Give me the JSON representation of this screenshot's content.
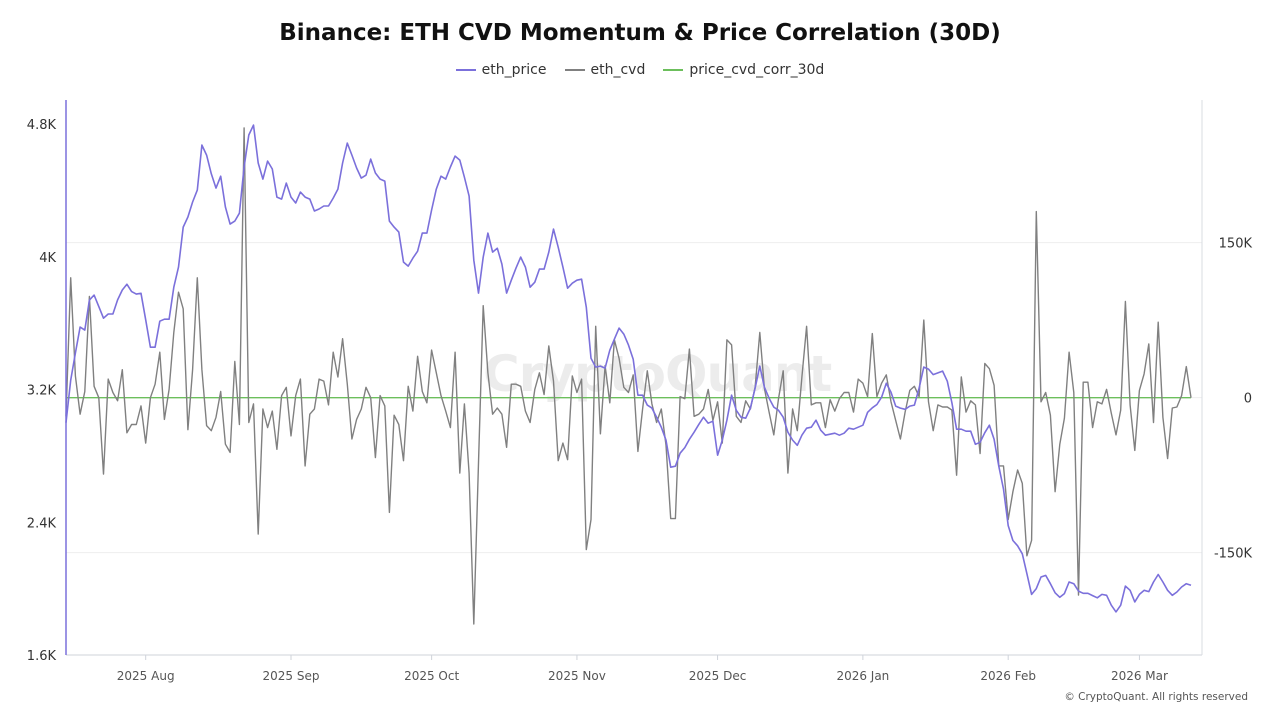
{
  "chart_data": {
    "type": "line",
    "title": "Binance: ETH CVD Momentum & Price Correlation (30D)",
    "legend_position": "top",
    "grid": true,
    "x_tick_labels": [
      {
        "date": "2025-08-01",
        "label": "2025 Aug"
      },
      {
        "date": "2025-09-01",
        "label": "2025 Sep"
      },
      {
        "date": "2025-10-01",
        "label": "2025 Oct"
      },
      {
        "date": "2025-11-01",
        "label": "2025 Nov"
      },
      {
        "date": "2025-12-01",
        "label": "2025 Dec"
      },
      {
        "date": "2026-01-01",
        "label": "2026 Jan"
      },
      {
        "date": "2026-02-01",
        "label": "2026 Feb"
      },
      {
        "date": "2026-03-01",
        "label": "2026 Mar"
      }
    ],
    "y_left": {
      "ticks": [
        1600,
        2400,
        3200,
        4000,
        4800
      ],
      "tick_labels": [
        "1.6K",
        "2.4K",
        "3.2K",
        "4K",
        "4.8K"
      ],
      "ylim": [
        1600,
        4945
      ],
      "series": "eth_price"
    },
    "y_right": {
      "ticks": [
        -150000,
        0,
        150000
      ],
      "tick_labels": [
        "-150K",
        "0",
        "150K"
      ],
      "ylim": [
        -249000,
        288000
      ],
      "series": [
        "eth_cvd",
        "price_cvd_corr_30d"
      ]
    },
    "x": [
      "2025-07-15",
      "2025-07-16",
      "2025-07-17",
      "2025-07-18",
      "2025-07-19",
      "2025-07-20",
      "2025-07-21",
      "2025-07-22",
      "2025-07-23",
      "2025-07-24",
      "2025-07-25",
      "2025-07-26",
      "2025-07-27",
      "2025-07-28",
      "2025-07-29",
      "2025-07-30",
      "2025-07-31",
      "2025-08-01",
      "2025-08-02",
      "2025-08-03",
      "2025-08-04",
      "2025-08-05",
      "2025-08-06",
      "2025-08-07",
      "2025-08-08",
      "2025-08-09",
      "2025-08-10",
      "2025-08-11",
      "2025-08-12",
      "2025-08-13",
      "2025-08-14",
      "2025-08-15",
      "2025-08-16",
      "2025-08-17",
      "2025-08-18",
      "2025-08-19",
      "2025-08-20",
      "2025-08-21",
      "2025-08-22",
      "2025-08-23",
      "2025-08-24",
      "2025-08-25",
      "2025-08-26",
      "2025-08-27",
      "2025-08-28",
      "2025-08-29",
      "2025-08-30",
      "2025-08-31",
      "2025-09-01",
      "2025-09-02",
      "2025-09-03",
      "2025-09-04",
      "2025-09-05",
      "2025-09-06",
      "2025-09-07",
      "2025-09-08",
      "2025-09-09",
      "2025-09-10",
      "2025-09-11",
      "2025-09-12",
      "2025-09-13",
      "2025-09-14",
      "2025-09-15",
      "2025-09-16",
      "2025-09-17",
      "2025-09-18",
      "2025-09-19",
      "2025-09-20",
      "2025-09-21",
      "2025-09-22",
      "2025-09-23",
      "2025-09-24",
      "2025-09-25",
      "2025-09-26",
      "2025-09-27",
      "2025-09-28",
      "2025-09-29",
      "2025-09-30",
      "2025-10-01",
      "2025-10-02",
      "2025-10-03",
      "2025-10-04",
      "2025-10-05",
      "2025-10-06",
      "2025-10-07",
      "2025-10-08",
      "2025-10-09",
      "2025-10-10",
      "2025-10-11",
      "2025-10-12",
      "2025-10-13",
      "2025-10-14",
      "2025-10-15",
      "2025-10-16",
      "2025-10-17",
      "2025-10-18",
      "2025-10-19",
      "2025-10-20",
      "2025-10-21",
      "2025-10-22",
      "2025-10-23",
      "2025-10-24",
      "2025-10-25",
      "2025-10-26",
      "2025-10-27",
      "2025-10-28",
      "2025-10-29",
      "2025-10-30",
      "2025-10-31",
      "2025-11-01",
      "2025-11-02",
      "2025-11-03",
      "2025-11-04",
      "2025-11-05",
      "2025-11-06",
      "2025-11-07",
      "2025-11-08",
      "2025-11-09",
      "2025-11-10",
      "2025-11-11",
      "2025-11-12",
      "2025-11-13",
      "2025-11-14",
      "2025-11-15",
      "2025-11-16",
      "2025-11-17",
      "2025-11-18",
      "2025-11-19",
      "2025-11-20",
      "2025-11-21",
      "2025-11-22",
      "2025-11-23",
      "2025-11-24",
      "2025-11-25",
      "2025-11-26",
      "2025-11-27",
      "2025-11-28",
      "2025-11-29",
      "2025-11-30",
      "2025-12-01",
      "2025-12-02",
      "2025-12-03",
      "2025-12-04",
      "2025-12-05",
      "2025-12-06",
      "2025-12-07",
      "2025-12-08",
      "2025-12-09",
      "2025-12-10",
      "2025-12-11",
      "2025-12-12",
      "2025-12-13",
      "2025-12-14",
      "2025-12-15",
      "2025-12-16",
      "2025-12-17",
      "2025-12-18",
      "2025-12-19",
      "2025-12-20",
      "2025-12-21",
      "2025-12-22",
      "2025-12-23",
      "2025-12-24",
      "2025-12-25",
      "2025-12-26",
      "2025-12-27",
      "2025-12-28",
      "2025-12-29",
      "2025-12-30",
      "2025-12-31",
      "2026-01-01",
      "2026-01-02",
      "2026-01-03",
      "2026-01-04",
      "2026-01-05",
      "2026-01-06",
      "2026-01-07",
      "2026-01-08",
      "2026-01-09",
      "2026-01-10",
      "2026-01-11",
      "2026-01-12",
      "2026-01-13",
      "2026-01-14",
      "2026-01-15",
      "2026-01-16",
      "2026-01-17",
      "2026-01-18",
      "2026-01-19",
      "2026-01-20",
      "2026-01-21",
      "2026-01-22",
      "2026-01-23",
      "2026-01-24",
      "2026-01-25",
      "2026-01-26",
      "2026-01-27",
      "2026-01-28",
      "2026-01-29",
      "2026-01-30",
      "2026-01-31",
      "2026-02-01",
      "2026-02-02",
      "2026-02-03",
      "2026-02-04",
      "2026-02-05",
      "2026-02-06",
      "2026-02-07",
      "2026-02-08",
      "2026-02-09",
      "2026-02-10",
      "2026-02-11",
      "2026-02-12",
      "2026-02-13",
      "2026-02-14",
      "2026-02-15",
      "2026-02-16",
      "2026-02-17",
      "2026-02-18",
      "2026-02-19",
      "2026-02-20",
      "2026-02-21",
      "2026-02-22",
      "2026-02-23",
      "2026-02-24",
      "2026-02-25",
      "2026-02-26",
      "2026-02-27",
      "2026-02-28",
      "2026-03-01",
      "2026-03-02",
      "2026-03-03",
      "2026-03-04",
      "2026-03-05",
      "2026-03-06",
      "2026-03-07",
      "2026-03-08",
      "2026-03-09",
      "2026-03-10",
      "2026-03-11",
      "2026-03-12"
    ],
    "series": [
      {
        "name": "eth_price",
        "axis": "left",
        "color": "#7b70db",
        "values": [
          3000,
          3256,
          3420,
          3576,
          3558,
          3739,
          3769,
          3700,
          3630,
          3655,
          3655,
          3740,
          3800,
          3835,
          3790,
          3775,
          3780,
          3620,
          3455,
          3455,
          3612,
          3624,
          3624,
          3817,
          3938,
          4179,
          4240,
          4330,
          4402,
          4673,
          4613,
          4500,
          4414,
          4486,
          4300,
          4197,
          4215,
          4263,
          4541,
          4734,
          4794,
          4565,
          4468,
          4577,
          4529,
          4360,
          4348,
          4444,
          4360,
          4324,
          4390,
          4360,
          4348,
          4276,
          4288,
          4306,
          4306,
          4354,
          4408,
          4565,
          4685,
          4613,
          4535,
          4474,
          4492,
          4589,
          4505,
          4468,
          4456,
          4215,
          4179,
          4149,
          3968,
          3944,
          3992,
          4034,
          4143,
          4143,
          4282,
          4408,
          4486,
          4468,
          4541,
          4607,
          4583,
          4480,
          4366,
          3980,
          3781,
          3998,
          4143,
          4028,
          4052,
          3956,
          3781,
          3859,
          3932,
          3998,
          3938,
          3817,
          3847,
          3926,
          3926,
          4028,
          4167,
          4058,
          3938,
          3811,
          3841,
          3859,
          3865,
          3696,
          3389,
          3335,
          3341,
          3329,
          3437,
          3504,
          3570,
          3534,
          3468,
          3383,
          3166,
          3166,
          3106,
          3088,
          3033,
          2973,
          2895,
          2732,
          2738,
          2816,
          2850,
          2900,
          2943,
          2990,
          3033,
          2997,
          3009,
          2804,
          2895,
          3015,
          3166,
          3075,
          3033,
          3027,
          3088,
          3208,
          3341,
          3214,
          3148,
          3094,
          3075,
          3033,
          2943,
          2895,
          2864,
          2925,
          2967,
          2973,
          3015,
          2955,
          2925,
          2931,
          2937,
          2925,
          2937,
          2967,
          2961,
          2973,
          2985,
          3063,
          3090,
          3110,
          3154,
          3238,
          3184,
          3100,
          3088,
          3081,
          3100,
          3106,
          3208,
          3335,
          3323,
          3290,
          3300,
          3311,
          3250,
          3120,
          2961,
          2961,
          2949,
          2949,
          2870,
          2882,
          2940,
          2985,
          2900,
          2738,
          2600,
          2380,
          2290,
          2258,
          2210,
          2090,
          1965,
          2000,
          2070,
          2080,
          2030,
          1975,
          1948,
          1970,
          2040,
          2030,
          1985,
          1972,
          1972,
          1958,
          1945,
          1965,
          1960,
          1900,
          1860,
          1900,
          2015,
          1990,
          1920,
          1965,
          1990,
          1982,
          2040,
          2085,
          2040,
          1990,
          1960,
          1980,
          2010,
          2030,
          2020
        ]
      },
      {
        "name": "eth_cvd",
        "axis": "right",
        "color": "#808080",
        "values": [
          -18000,
          116000,
          21000,
          -16000,
          6000,
          98000,
          11000,
          0,
          -74000,
          18000,
          5000,
          -3000,
          27000,
          -34000,
          -26000,
          -26000,
          -8000,
          -44000,
          0,
          13000,
          44000,
          -21000,
          8000,
          63000,
          102000,
          86000,
          -31000,
          27000,
          116000,
          27000,
          -27000,
          -32000,
          -19000,
          6000,
          -45000,
          -53000,
          35000,
          -26000,
          261000,
          -24000,
          -6000,
          -132000,
          -11000,
          -29000,
          -13000,
          -50000,
          2000,
          10000,
          -37000,
          2000,
          18000,
          -66000,
          -16000,
          -11000,
          18000,
          16000,
          -7000,
          44000,
          20000,
          57000,
          13000,
          -40000,
          -21000,
          -11000,
          10000,
          0,
          -58000,
          2000,
          -8000,
          -111000,
          -17000,
          -26000,
          -61000,
          11000,
          -13000,
          40000,
          6000,
          -5000,
          46000,
          24000,
          2000,
          -13000,
          -29000,
          44000,
          -73000,
          -6000,
          -73000,
          -219000,
          -63000,
          89000,
          24000,
          -16000,
          -10000,
          -16000,
          -48000,
          13000,
          13000,
          11000,
          -13000,
          -24000,
          8000,
          24000,
          3000,
          50000,
          16000,
          -61000,
          -44000,
          -60000,
          21000,
          5000,
          18000,
          -147000,
          -118000,
          69000,
          -35000,
          31000,
          -5000,
          56000,
          38000,
          10000,
          5000,
          22000,
          -52000,
          -11000,
          26000,
          -6000,
          -24000,
          -11000,
          -46000,
          -117000,
          -117000,
          1000,
          -1000,
          47000,
          -18000,
          -16000,
          -11000,
          8000,
          -22000,
          -4000,
          -44000,
          56000,
          51000,
          -18000,
          -24000,
          -3000,
          -11000,
          10000,
          63000,
          9000,
          -14000,
          -36000,
          -1000,
          26000,
          -73000,
          -11000,
          -32000,
          20000,
          69000,
          -7000,
          -5000,
          -5000,
          -29000,
          -2000,
          -13000,
          -1000,
          5000,
          5000,
          -14000,
          18000,
          14000,
          1000,
          62000,
          1000,
          14000,
          22000,
          -4000,
          -22000,
          -40000,
          -14000,
          7000,
          11000,
          1000,
          75000,
          -4000,
          -32000,
          -7000,
          -9000,
          -9000,
          -12000,
          -75000,
          20000,
          -14000,
          -3000,
          -7000,
          -54000,
          33000,
          28000,
          12000,
          -66000,
          -66000,
          -118000,
          -91000,
          -70000,
          -83000,
          -153000,
          -138000,
          180000,
          -4000,
          5000,
          -17000,
          -91000,
          -45000,
          -20000,
          44000,
          5000,
          -191000,
          15000,
          15000,
          -29000,
          -4000,
          -6000,
          8000,
          -15000,
          -36000,
          -12000,
          93000,
          -7000,
          -51000,
          7000,
          23000,
          52000,
          -24000,
          73000,
          -19000,
          -59000,
          -10000,
          -9000,
          2000,
          30000,
          0
        ]
      },
      {
        "name": "price_cvd_corr_30d",
        "axis": "right",
        "color": "#6cbf5c",
        "values": [
          0,
          0,
          0,
          0,
          0,
          0,
          0,
          0,
          0,
          0,
          0,
          0,
          0,
          0,
          0,
          0,
          0,
          0,
          0,
          0,
          0,
          0,
          0,
          0,
          0,
          0,
          0,
          0,
          0,
          0,
          0,
          0,
          0,
          0,
          0,
          0,
          0,
          0,
          0,
          0,
          0,
          0,
          0,
          0,
          0,
          0,
          0,
          0,
          0,
          0,
          0,
          0,
          0,
          0,
          0,
          0,
          0,
          0,
          0,
          0,
          0,
          0,
          0,
          0,
          0,
          0,
          0,
          0,
          0,
          0,
          0,
          0,
          0,
          0,
          0,
          0,
          0,
          0,
          0,
          0,
          0,
          0,
          0,
          0,
          0,
          0,
          0,
          0,
          0,
          0,
          0,
          0,
          0,
          0,
          0,
          0,
          0,
          0,
          0,
          0,
          0,
          0,
          0,
          0,
          0,
          0,
          0,
          0,
          0,
          0,
          0,
          0,
          0,
          0,
          0,
          0,
          0,
          0,
          0,
          0,
          0,
          0,
          0,
          0,
          0,
          0,
          0,
          0,
          0,
          0,
          0,
          0,
          0,
          0,
          0,
          0,
          0,
          0,
          0,
          0,
          0,
          0,
          0,
          0,
          0,
          0,
          0,
          0,
          0,
          0,
          0,
          0,
          0,
          0,
          0,
          0,
          0,
          0,
          0,
          0,
          0,
          0,
          0,
          0,
          0,
          0,
          0,
          0,
          0,
          0,
          0,
          0,
          0,
          0,
          0,
          0,
          0,
          0,
          0,
          0,
          0,
          0,
          0,
          0,
          0,
          0,
          0,
          0,
          0,
          0,
          0,
          0,
          0,
          0,
          0,
          0,
          0,
          0,
          0,
          0,
          0,
          0,
          0,
          0,
          0,
          0,
          0,
          0,
          0,
          0,
          0,
          0,
          0,
          0,
          0,
          0,
          0,
          0,
          0,
          0,
          0,
          0,
          0,
          0,
          0,
          0,
          0,
          0,
          0,
          0,
          0,
          0,
          0,
          0,
          0,
          0,
          0,
          0,
          0,
          0,
          0
        ]
      }
    ]
  },
  "legend": [
    {
      "label": "eth_price",
      "color": "#7b70db"
    },
    {
      "label": "eth_cvd",
      "color": "#808080"
    },
    {
      "label": "price_cvd_corr_30d",
      "color": "#6cbf5c"
    }
  ],
  "watermark": "CryptoQuant",
  "copyright": "© CryptoQuant. All rights reserved"
}
